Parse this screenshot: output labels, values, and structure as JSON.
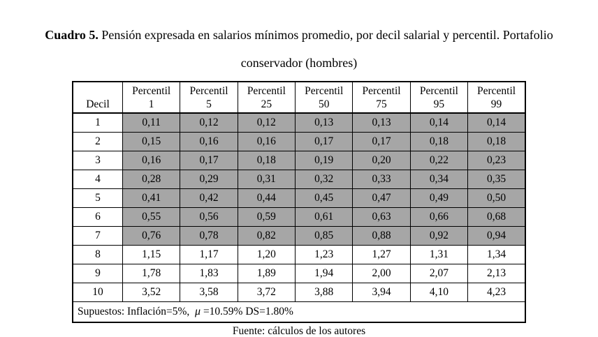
{
  "title": {
    "prefix": "Cuadro 5.",
    "text": " Pensión expresada en salarios mínimos promedio, por decil salarial y percentil. Portafolio conservador (hombres)"
  },
  "table": {
    "header": {
      "decil_label": "Decil",
      "percentil_prefix": "Percentil",
      "percentiles": [
        "1",
        "5",
        "25",
        "50",
        "75",
        "95",
        "99"
      ]
    },
    "rows": [
      {
        "decil": "1",
        "shaded": true,
        "values": [
          "0,11",
          "0,12",
          "0,12",
          "0,13",
          "0,13",
          "0,14",
          "0,14"
        ]
      },
      {
        "decil": "2",
        "shaded": true,
        "values": [
          "0,15",
          "0,16",
          "0,16",
          "0,17",
          "0,17",
          "0,18",
          "0,18"
        ]
      },
      {
        "decil": "3",
        "shaded": true,
        "values": [
          "0,16",
          "0,17",
          "0,18",
          "0,19",
          "0,20",
          "0,22",
          "0,23"
        ]
      },
      {
        "decil": "4",
        "shaded": true,
        "values": [
          "0,28",
          "0,29",
          "0,31",
          "0,32",
          "0,33",
          "0,34",
          "0,35"
        ]
      },
      {
        "decil": "5",
        "shaded": true,
        "values": [
          "0,41",
          "0,42",
          "0,44",
          "0,45",
          "0,47",
          "0,49",
          "0,50"
        ]
      },
      {
        "decil": "6",
        "shaded": true,
        "values": [
          "0,55",
          "0,56",
          "0,59",
          "0,61",
          "0,63",
          "0,66",
          "0,68"
        ]
      },
      {
        "decil": "7",
        "shaded": true,
        "values": [
          "0,76",
          "0,78",
          "0,82",
          "0,85",
          "0,88",
          "0,92",
          "0,94"
        ]
      },
      {
        "decil": "8",
        "shaded": false,
        "values": [
          "1,15",
          "1,17",
          "1,20",
          "1,23",
          "1,27",
          "1,31",
          "1,34"
        ]
      },
      {
        "decil": "9",
        "shaded": false,
        "values": [
          "1,78",
          "1,83",
          "1,89",
          "1,94",
          "2,00",
          "2,07",
          "2,13"
        ]
      },
      {
        "decil": "10",
        "shaded": false,
        "values": [
          "3,52",
          "3,58",
          "3,72",
          "3,88",
          "3,94",
          "4,10",
          "4,23"
        ]
      }
    ],
    "note": {
      "prefix": "Supuestos: Inflación=5%,  ",
      "mu": "μ",
      "suffix": " =10.59% DS=1.80%"
    }
  },
  "source": "Fuente: cálculos de los autores",
  "colors": {
    "shaded_cell": "#a6a6a6",
    "border": "#000000",
    "text": "#000000",
    "background": "#ffffff"
  }
}
